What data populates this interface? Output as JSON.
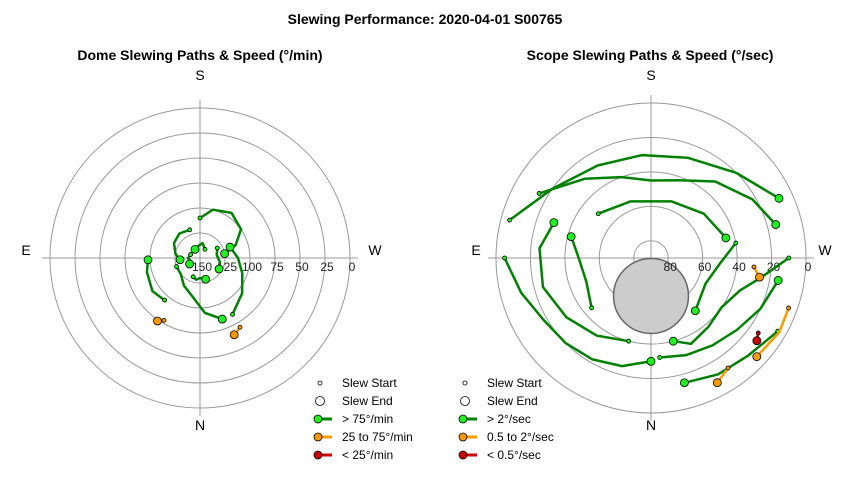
{
  "title": "Slewing Performance: 2020-04-01 S00765",
  "colors": {
    "fast": "#008000",
    "fast_marker": "#22ee22",
    "medium": "#ff9900",
    "slow": "#cc0000",
    "ring": "#999999",
    "zenith_fill": "#cccccc"
  },
  "chart_data": [
    {
      "type": "scatter",
      "subtype": "polar",
      "title": "Dome Slewing Paths & Speed (°/min)",
      "directions": {
        "top": "S",
        "bottom": "N",
        "left": "E",
        "right": "W"
      },
      "radial_tick_labels": [
        "150",
        "125",
        "100",
        "75",
        "50",
        "25",
        "0"
      ],
      "radial_ticks": [
        150,
        125,
        100,
        75,
        50,
        25,
        0
      ],
      "radial_range": [
        150,
        0
      ],
      "grid": true,
      "legend": {
        "placement": "bottom-right",
        "entries": [
          {
            "label": "Slew Start",
            "kind": "start"
          },
          {
            "label": "Slew End",
            "kind": "end"
          },
          {
            "label": "> 75°/min",
            "kind": "fast"
          },
          {
            "label": "25 to 75°/min",
            "kind": "medium"
          },
          {
            "label": "< 25°/min",
            "kind": "slow"
          }
        ]
      },
      "paths": [
        {
          "speed": "fast",
          "points": [
            [
              0,
              110
            ],
            [
              15,
              100
            ],
            [
              35,
              95
            ],
            [
              55,
              100
            ],
            [
              70,
              112
            ],
            [
              80,
              125
            ]
          ]
        },
        {
          "speed": "fast",
          "points": [
            [
              340,
              120
            ],
            [
              320,
              118
            ],
            [
              300,
              120
            ],
            [
              280,
              125
            ],
            [
              265,
              130
            ]
          ]
        },
        {
          "speed": "fast",
          "points": [
            [
              250,
              125
            ],
            [
              230,
              125
            ],
            [
              210,
              118
            ],
            [
              190,
              110
            ],
            [
              175,
              95
            ],
            [
              160,
              85
            ]
          ]
        },
        {
          "speed": "fast",
          "points": [
            [
              150,
              85
            ],
            [
              130,
              95
            ],
            [
              110,
              105
            ],
            [
              90,
              112
            ],
            [
              70,
              118
            ]
          ]
        },
        {
          "speed": "fast",
          "points": [
            [
              30,
              140
            ],
            [
              10,
              135
            ],
            [
              350,
              138
            ],
            [
              330,
              140
            ]
          ]
        },
        {
          "speed": "fast",
          "points": [
            [
              200,
              130
            ],
            [
              190,
              128
            ],
            [
              180,
              130
            ],
            [
              165,
              128
            ]
          ]
        },
        {
          "speed": "fast",
          "points": [
            [
              290,
              140
            ],
            [
              270,
              138
            ],
            [
              255,
              140
            ],
            [
              240,
              138
            ]
          ]
        },
        {
          "speed": "fast",
          "points": [
            [
              60,
              130
            ],
            [
              80,
              133
            ],
            [
              100,
              130
            ],
            [
              120,
              128
            ]
          ]
        },
        {
          "speed": "fast",
          "points": [
            [
              220,
              95
            ],
            [
              235,
              92
            ],
            [
              255,
              95
            ],
            [
              268,
              98
            ]
          ]
        },
        {
          "speed": "medium",
          "points": [
            [
              150,
              70
            ],
            [
              156,
              66
            ]
          ]
        },
        {
          "speed": "medium",
          "points": [
            [
              210,
              78
            ],
            [
              214,
              74
            ]
          ]
        }
      ]
    },
    {
      "type": "scatter",
      "subtype": "polar",
      "title": "Scope Slewing Paths & Speed (°/sec)",
      "directions": {
        "top": "S",
        "bottom": "N",
        "left": "E",
        "right": "W"
      },
      "radial_tick_labels": [
        "80",
        "60",
        "40",
        "20",
        "0"
      ],
      "radial_ticks": [
        80,
        60,
        40,
        20,
        0
      ],
      "radial_range": [
        90,
        0
      ],
      "zenith_limit_deg": 70,
      "grid": true,
      "legend": {
        "placement": "bottom-right",
        "entries": [
          {
            "label": "Slew Start",
            "kind": "start"
          },
          {
            "label": "Slew End",
            "kind": "end"
          },
          {
            "label": "> 2°/sec",
            "kind": "fast"
          },
          {
            "label": "0.5 to 2°/sec",
            "kind": "medium"
          },
          {
            "label": "< 0.5°/sec",
            "kind": "slow"
          }
        ]
      },
      "paths": [
        {
          "speed": "fast",
          "points": [
            [
              300,
              15
            ],
            [
              320,
              30
            ],
            [
              340,
              40
            ],
            [
              0,
              45
            ],
            [
              20,
              42
            ],
            [
              40,
              32
            ],
            [
              60,
              22
            ],
            [
              75,
              15
            ]
          ]
        },
        {
          "speed": "fast",
          "points": [
            [
              285,
              5
            ],
            [
              305,
              20
            ],
            [
              330,
              28
            ],
            [
              355,
              30
            ],
            [
              20,
              28
            ],
            [
              45,
              20
            ],
            [
              65,
              8
            ]
          ]
        },
        {
          "speed": "fast",
          "points": [
            [
              270,
              5
            ],
            [
              255,
              12
            ],
            [
              240,
              18
            ],
            [
              225,
              20
            ],
            [
              210,
              22
            ],
            [
              195,
              25
            ],
            [
              180,
              30
            ]
          ]
        },
        {
          "speed": "fast",
          "points": [
            [
              175,
              32
            ],
            [
              160,
              30
            ],
            [
              145,
              28
            ],
            [
              130,
              25
            ],
            [
              115,
              20
            ],
            [
              100,
              15
            ]
          ]
        },
        {
          "speed": "fast",
          "points": [
            [
              90,
              10
            ],
            [
              100,
              25
            ],
            [
              110,
              35
            ],
            [
              125,
              40
            ],
            [
              140,
              38
            ],
            [
              155,
              35
            ],
            [
              165,
              40
            ]
          ]
        },
        {
          "speed": "fast",
          "points": [
            [
              195,
              40
            ],
            [
              215,
              35
            ],
            [
              235,
              30
            ],
            [
              255,
              25
            ],
            [
              275,
              25
            ],
            [
              290,
              30
            ]
          ]
        },
        {
          "speed": "fast",
          "points": [
            [
              310,
              50
            ],
            [
              340,
              55
            ],
            [
              20,
              55
            ],
            [
              50,
              50
            ],
            [
              75,
              45
            ]
          ]
        },
        {
          "speed": "fast",
          "points": [
            [
              80,
              40
            ],
            [
              95,
              50
            ],
            [
              115,
              55
            ],
            [
              140,
              50
            ]
          ]
        },
        {
          "speed": "fast",
          "points": [
            [
              230,
              45
            ],
            [
              250,
              50
            ],
            [
              270,
              48
            ],
            [
              285,
              42
            ]
          ]
        },
        {
          "speed": "fast",
          "points": [
            [
              120,
              5
            ],
            [
              135,
              10
            ],
            [
              150,
              12
            ],
            [
              165,
              15
            ]
          ]
        },
        {
          "speed": "medium",
          "points": [
            [
              110,
              5
            ],
            [
              120,
              4
            ],
            [
              133,
              6
            ]
          ]
        },
        {
          "speed": "medium",
          "points": [
            [
              145,
              12
            ],
            [
              152,
              8
            ]
          ]
        },
        {
          "speed": "medium",
          "points": [
            [
              95,
              30
            ],
            [
              100,
              26
            ]
          ]
        },
        {
          "speed": "slow",
          "points": [
            [
              125,
              14
            ],
            [
              128,
              12
            ]
          ]
        }
      ]
    }
  ]
}
